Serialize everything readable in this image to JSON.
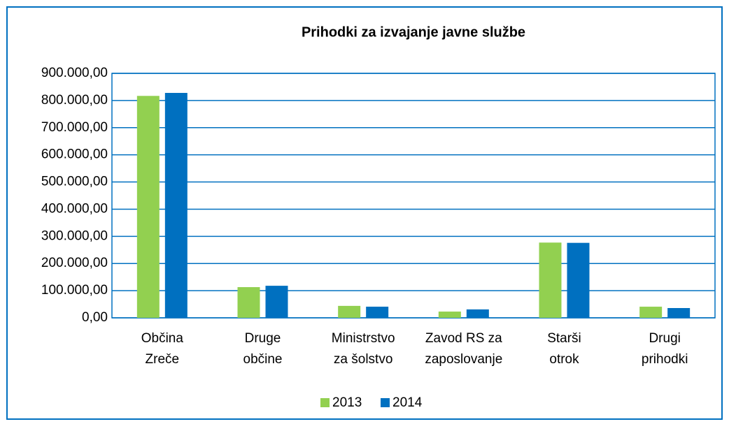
{
  "chart_data": {
    "type": "bar",
    "title": "Prihodki za izvajanje javne službe",
    "categories": [
      [
        "Občina",
        "Zreče"
      ],
      [
        "Druge",
        "občine"
      ],
      [
        "Ministrstvo",
        "za šolstvo"
      ],
      [
        "Zavod RS za",
        "zaposlovanje"
      ],
      [
        "Starši",
        "otrok"
      ],
      [
        "Drugi",
        "prihodki"
      ]
    ],
    "series": [
      {
        "name": "2013",
        "color": "#92d050",
        "values": [
          817000,
          113000,
          44000,
          23000,
          277000,
          41000
        ]
      },
      {
        "name": "2014",
        "color": "#0070c0",
        "values": [
          828000,
          118000,
          41000,
          31000,
          276000,
          36000
        ]
      }
    ],
    "ylim": [
      0,
      900000
    ],
    "yticks": [
      {
        "value": 0,
        "label": "0,00"
      },
      {
        "value": 100000,
        "label": "100.000,00"
      },
      {
        "value": 200000,
        "label": "200.000,00"
      },
      {
        "value": 300000,
        "label": "300.000,00"
      },
      {
        "value": 400000,
        "label": "400.000,00"
      },
      {
        "value": 500000,
        "label": "500.000,00"
      },
      {
        "value": 600000,
        "label": "600.000,00"
      },
      {
        "value": 700000,
        "label": "700.000,00"
      },
      {
        "value": 800000,
        "label": "800.000,00"
      },
      {
        "value": 900000,
        "label": "900.000,00"
      }
    ],
    "grid": true,
    "legend": "bottom"
  }
}
